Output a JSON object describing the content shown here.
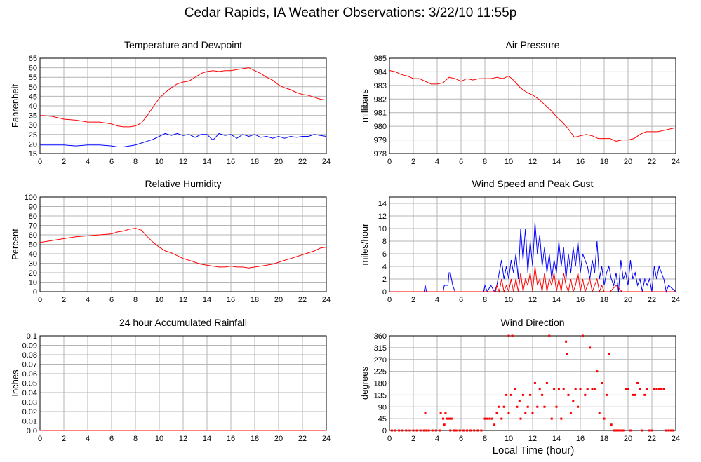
{
  "title": "Cedar Rapids, IA Weather Observations: 3/22/10 11:55p",
  "xlabel_shared": "Local Time (hour)",
  "colors": {
    "red": "#ff0000",
    "blue": "#0000ff",
    "grid": "#b4b4b4",
    "axis": "#000000"
  },
  "chart_data": [
    {
      "id": "temp",
      "type": "line",
      "title": "Temperature and Dewpoint",
      "ylabel": "Fahrenheit",
      "xlim": [
        0,
        24
      ],
      "ylim": [
        15,
        65
      ],
      "xticks": [
        0,
        2,
        4,
        6,
        8,
        10,
        12,
        14,
        16,
        18,
        20,
        22,
        24
      ],
      "yticks": [
        15,
        20,
        25,
        30,
        35,
        40,
        45,
        50,
        55,
        60,
        65
      ],
      "grid": true,
      "series": [
        {
          "color": "#ff0000",
          "x": [
            0,
            1,
            2,
            3,
            4,
            5,
            6,
            6.5,
            7,
            7.5,
            8,
            8.5,
            9,
            9.5,
            10,
            10.5,
            11,
            11.5,
            12,
            12.5,
            13,
            13.5,
            14,
            14.5,
            15,
            15.5,
            16,
            16.5,
            17,
            17.5,
            18,
            18.5,
            19,
            19.5,
            20,
            20.5,
            21,
            21.5,
            22,
            22.5,
            23,
            23.5,
            24
          ],
          "values": [
            35,
            34.5,
            33,
            32.5,
            31.5,
            31.5,
            30.5,
            29.5,
            29,
            29,
            29.5,
            31,
            35,
            39.5,
            44,
            47,
            49.5,
            51.5,
            52.5,
            53,
            55,
            57,
            58,
            58.5,
            58,
            58.5,
            58.5,
            59,
            59.5,
            60,
            58.5,
            57,
            55,
            53.5,
            51,
            49.5,
            48.5,
            47,
            46,
            45.5,
            44.5,
            43.5,
            43
          ]
        },
        {
          "color": "#0000ff",
          "x": [
            0,
            1,
            2,
            3,
            4,
            5,
            6,
            6.5,
            7,
            7.5,
            8,
            8.5,
            9,
            9.5,
            10,
            10.5,
            11,
            11.5,
            12,
            12.5,
            13,
            13.5,
            14,
            14.5,
            15,
            15.5,
            16,
            16.5,
            17,
            17.5,
            18,
            18.5,
            19,
            19.5,
            20,
            20.5,
            21,
            21.5,
            22,
            22.5,
            23,
            23.5,
            24
          ],
          "values": [
            19.5,
            19.5,
            19.5,
            19,
            19.5,
            19.5,
            19,
            18.5,
            18.5,
            19,
            19.5,
            20.5,
            21.5,
            22.5,
            24,
            25.5,
            24.5,
            25.5,
            24.5,
            25,
            23.5,
            25,
            25,
            22,
            25.5,
            24.5,
            25,
            23,
            25,
            24,
            25,
            23.5,
            24,
            23,
            24,
            23,
            24,
            23.5,
            24,
            24,
            25,
            24.5,
            24
          ]
        }
      ]
    },
    {
      "id": "pressure",
      "type": "line",
      "title": "Air Pressure",
      "ylabel": "millibars",
      "xlim": [
        0,
        24
      ],
      "ylim": [
        978,
        985
      ],
      "xticks": [
        0,
        2,
        4,
        6,
        8,
        10,
        12,
        14,
        16,
        18,
        20,
        22,
        24
      ],
      "yticks": [
        978,
        979,
        980,
        981,
        982,
        983,
        984,
        985
      ],
      "grid": true,
      "series": [
        {
          "color": "#ff0000",
          "x": [
            0,
            0.5,
            1,
            1.5,
            2,
            2.5,
            3,
            3.5,
            4,
            4.5,
            5,
            5.5,
            6,
            6.5,
            7,
            7.5,
            8,
            8.5,
            9,
            9.5,
            10,
            10.5,
            11,
            11.5,
            12,
            12.5,
            13,
            13.5,
            14,
            14.5,
            15,
            15.5,
            16,
            16.5,
            17,
            17.5,
            18,
            18.5,
            19,
            19.5,
            20,
            20.5,
            21,
            21.5,
            22,
            22.5,
            23,
            23.5,
            24
          ],
          "values": [
            984.1,
            984.0,
            983.8,
            983.7,
            983.5,
            983.5,
            983.3,
            983.1,
            983.1,
            983.2,
            983.6,
            983.5,
            983.3,
            983.5,
            983.4,
            983.5,
            983.5,
            983.5,
            983.6,
            983.5,
            983.7,
            983.3,
            982.8,
            982.5,
            982.3,
            982.0,
            981.6,
            981.2,
            980.7,
            980.3,
            979.8,
            979.2,
            979.3,
            979.4,
            979.3,
            979.1,
            979.1,
            979.1,
            978.9,
            979.0,
            979.0,
            979.1,
            979.4,
            979.6,
            979.6,
            979.6,
            979.7,
            979.8,
            979.9
          ]
        }
      ]
    },
    {
      "id": "humidity",
      "type": "line",
      "title": "Relative Humidity",
      "ylabel": "Percent",
      "xlim": [
        0,
        24
      ],
      "ylim": [
        0,
        100
      ],
      "xticks": [
        0,
        2,
        4,
        6,
        8,
        10,
        12,
        14,
        16,
        18,
        20,
        22,
        24
      ],
      "yticks": [
        0,
        10,
        20,
        30,
        40,
        50,
        60,
        70,
        80,
        90,
        100
      ],
      "grid": true,
      "series": [
        {
          "color": "#ff0000",
          "x": [
            0,
            1,
            2,
            3,
            4,
            5,
            6,
            6.5,
            7,
            7.5,
            8,
            8.5,
            9,
            9.5,
            10,
            10.5,
            11,
            11.5,
            12,
            12.5,
            13,
            13.5,
            14,
            14.5,
            15,
            15.5,
            16,
            16.5,
            17,
            17.5,
            18,
            18.5,
            19,
            19.5,
            20,
            20.5,
            21,
            21.5,
            22,
            22.5,
            23,
            23.5,
            24
          ],
          "values": [
            52,
            54,
            56,
            58,
            59,
            60,
            61,
            63,
            64,
            66,
            67,
            65,
            58,
            52,
            47,
            43,
            41,
            38,
            35,
            33,
            31,
            29,
            28,
            27,
            26,
            26,
            27,
            26,
            26,
            25,
            26,
            27,
            28,
            29,
            31,
            33,
            35,
            37,
            39,
            41,
            43,
            46,
            47
          ]
        }
      ]
    },
    {
      "id": "wind",
      "type": "line",
      "title": "Wind Speed and Peak Gust",
      "ylabel": "miles/hour",
      "xlim": [
        0,
        24
      ],
      "ylim": [
        0,
        15
      ],
      "xticks": [
        0,
        2,
        4,
        6,
        8,
        10,
        12,
        14,
        16,
        18,
        20,
        22,
        24
      ],
      "yticks": [
        0,
        2,
        4,
        6,
        8,
        10,
        12,
        14
      ],
      "grid": true,
      "series": [
        {
          "color": "#0000ff",
          "x": [
            0,
            2.9,
            3.0,
            3.1,
            4.5,
            4.6,
            4.9,
            5.0,
            5.1,
            5.3,
            5.5,
            7.9,
            8.0,
            8.2,
            8.5,
            8.8,
            9.0,
            9.2,
            9.4,
            9.6,
            9.8,
            10.0,
            10.2,
            10.4,
            10.6,
            10.8,
            11.0,
            11.2,
            11.4,
            11.6,
            11.8,
            12.0,
            12.2,
            12.4,
            12.6,
            12.8,
            13.0,
            13.2,
            13.4,
            13.6,
            13.8,
            14.0,
            14.2,
            14.4,
            14.6,
            14.8,
            15.0,
            15.2,
            15.4,
            15.6,
            15.8,
            16.0,
            16.2,
            16.4,
            16.6,
            16.8,
            17.0,
            17.2,
            17.4,
            17.6,
            17.8,
            18.0,
            18.2,
            18.4,
            18.6,
            18.8,
            19.0,
            19.2,
            19.4,
            19.6,
            19.8,
            20.0,
            20.2,
            20.4,
            20.6,
            20.8,
            21.0,
            21.2,
            21.4,
            21.6,
            21.8,
            22.0,
            22.2,
            22.4,
            22.6,
            22.8,
            23.0,
            23.2,
            23.4,
            24
          ],
          "values": [
            0,
            0,
            1,
            0,
            0,
            1,
            1,
            3,
            3,
            1,
            0,
            0,
            1,
            0,
            1,
            0,
            1,
            3,
            5,
            2,
            4,
            2,
            5,
            3,
            6,
            2,
            10,
            5,
            10,
            3,
            8,
            4,
            11,
            6,
            9,
            4,
            7,
            3,
            6,
            2,
            5,
            3,
            8,
            4,
            7,
            2,
            6,
            3,
            7,
            4,
            8,
            3,
            6,
            5,
            4,
            2,
            5,
            3,
            8,
            2,
            4,
            1,
            3,
            4,
            2,
            1,
            3,
            0,
            5,
            2,
            3,
            1,
            5,
            2,
            3,
            1,
            2,
            0,
            2,
            1,
            2,
            0,
            4,
            2,
            4,
            3,
            2,
            0,
            1,
            0
          ]
        },
        {
          "color": "#ff0000",
          "x": [
            0,
            8.9,
            9.0,
            9.2,
            9.4,
            9.6,
            9.8,
            10.0,
            10.2,
            10.4,
            10.6,
            10.8,
            11.0,
            11.2,
            11.4,
            11.6,
            11.8,
            12.0,
            12.2,
            12.4,
            12.6,
            12.8,
            13.0,
            13.2,
            13.4,
            13.6,
            13.8,
            14.0,
            14.2,
            14.4,
            14.6,
            14.8,
            15.0,
            15.2,
            15.4,
            15.6,
            15.8,
            16.0,
            16.2,
            16.4,
            16.6,
            16.8,
            17.0,
            17.2,
            17.4,
            17.6,
            17.8,
            18.0,
            18.5,
            19.0,
            19.5,
            20.0,
            24
          ],
          "values": [
            0,
            0,
            1,
            0,
            2,
            0,
            1,
            0,
            2,
            0,
            2,
            0,
            3,
            0,
            2,
            1,
            3,
            0,
            4,
            1,
            2,
            0,
            3,
            0,
            2,
            1,
            3,
            0,
            2,
            0,
            3,
            1,
            0,
            2,
            0,
            1,
            3,
            0,
            2,
            0,
            1,
            2,
            0,
            1,
            2,
            0,
            1,
            0,
            0,
            1,
            0,
            0,
            0
          ]
        }
      ]
    },
    {
      "id": "rain",
      "type": "line",
      "title": "24 hour Accumulated Rainfall",
      "ylabel": "Inches",
      "xlim": [
        0,
        24
      ],
      "ylim": [
        0,
        0.1
      ],
      "xticks": [
        0,
        2,
        4,
        6,
        8,
        10,
        12,
        14,
        16,
        18,
        20,
        22,
        24
      ],
      "yticks": [
        0.0,
        0.01,
        0.02,
        0.03,
        0.04,
        0.05,
        0.06,
        0.07,
        0.08,
        0.09,
        0.1
      ],
      "ytick_labels": [
        "0.0",
        "0.01",
        "0.02",
        "0.03",
        "0.04",
        "0.05",
        "0.06",
        "0.07",
        "0.08",
        "0.09",
        "0.1"
      ],
      "grid": true,
      "series": [
        {
          "color": "#ff0000",
          "x": [
            0,
            24
          ],
          "values": [
            0,
            0
          ]
        }
      ]
    },
    {
      "id": "direction",
      "type": "scatter",
      "title": "Wind Direction",
      "ylabel": "degrees",
      "xlabel": "Local Time (hour)",
      "xlim": [
        0,
        24
      ],
      "ylim": [
        0,
        360
      ],
      "xticks": [
        0,
        2,
        4,
        6,
        8,
        10,
        12,
        14,
        16,
        18,
        20,
        22,
        24
      ],
      "yticks": [
        0,
        45,
        90,
        135,
        180,
        225,
        270,
        315,
        360
      ],
      "grid": true,
      "series": [
        {
          "color": "#ff0000",
          "x": [
            0.2,
            0.5,
            0.8,
            1.1,
            1.4,
            1.7,
            2.0,
            2.3,
            2.6,
            2.9,
            3.0,
            3.1,
            3.3,
            3.6,
            3.9,
            4.2,
            4.3,
            4.5,
            4.6,
            4.7,
            4.8,
            5.0,
            5.1,
            5.2,
            5.4,
            5.6,
            5.9,
            6.2,
            6.5,
            6.8,
            7.1,
            7.4,
            7.7,
            8.0,
            8.2,
            8.4,
            8.6,
            8.8,
            9.0,
            9.2,
            9.4,
            9.6,
            9.8,
            10.0,
            10.0,
            10.2,
            10.3,
            10.5,
            10.7,
            10.9,
            11.0,
            11.2,
            11.4,
            11.6,
            11.8,
            12.0,
            12.2,
            12.4,
            12.6,
            12.8,
            13.0,
            13.2,
            13.4,
            13.6,
            13.8,
            14.0,
            14.2,
            14.4,
            14.6,
            14.8,
            14.9,
            15.0,
            15.2,
            15.4,
            15.6,
            15.8,
            16.0,
            16.2,
            16.4,
            16.6,
            16.8,
            17.0,
            17.2,
            17.4,
            17.6,
            17.8,
            18.0,
            18.2,
            18.4,
            18.6,
            18.8,
            19.0,
            19.2,
            19.4,
            19.6,
            19.8,
            20.0,
            20.2,
            20.4,
            20.6,
            20.8,
            21.0,
            21.2,
            21.4,
            21.6,
            21.8,
            22.0,
            22.2,
            22.4,
            22.6,
            22.8,
            23.0,
            23.2,
            23.4,
            23.6,
            23.8
          ],
          "y": [
            0,
            0,
            0,
            0,
            0,
            0,
            0,
            0,
            0,
            0,
            68,
            0,
            0,
            0,
            0,
            0,
            68,
            45,
            22,
            68,
            45,
            45,
            0,
            45,
            0,
            0,
            0,
            0,
            0,
            0,
            0,
            0,
            0,
            45,
            45,
            45,
            45,
            22,
            68,
            90,
            45,
            90,
            135,
            360,
            68,
            135,
            360,
            158,
            90,
            112,
            45,
            135,
            68,
            90,
            135,
            68,
            180,
            90,
            158,
            135,
            90,
            180,
            360,
            45,
            158,
            90,
            158,
            45,
            158,
            338,
            292,
            135,
            68,
            112,
            158,
            90,
            158,
            360,
            135,
            158,
            315,
            158,
            158,
            225,
            68,
            180,
            45,
            135,
            292,
            22,
            0,
            0,
            0,
            0,
            0,
            158,
            158,
            0,
            135,
            135,
            180,
            158,
            0,
            135,
            158,
            0,
            0,
            158,
            158,
            158,
            158,
            158,
            0,
            0,
            0,
            0
          ]
        }
      ]
    }
  ]
}
